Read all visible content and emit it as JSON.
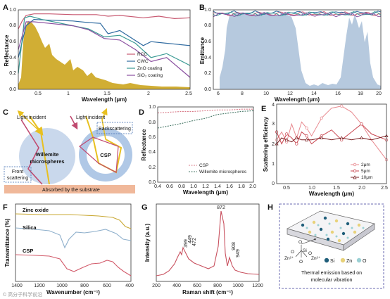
{
  "panels": {
    "a": {
      "label": "A",
      "ylabel": "Reflectance",
      "xlabel": "Wavelength (μm)",
      "yticks": [
        "0.0",
        "0.2",
        "0.4",
        "0.6",
        "0.8",
        "1.0"
      ],
      "xticks": [
        "0.5",
        "1",
        "1.5",
        "2",
        "2.5"
      ],
      "legend": [
        "RCC",
        "CWC",
        "ZnO coating",
        "SiO₂ coating"
      ]
    },
    "b": {
      "label": "B",
      "ylabel": "Emittance",
      "xlabel": "Wavelength (μm)",
      "yticks": [
        "0.0",
        "0.2",
        "0.4",
        "0.6",
        "0.8",
        "1.0"
      ],
      "xticks": [
        "6",
        "8",
        "10",
        "12",
        "14",
        "16",
        "18",
        "20"
      ]
    },
    "c": {
      "label": "C",
      "incident_left": "Light incident",
      "incident_right": "Light incident",
      "willemite": [
        "Willemite",
        "microspheres"
      ],
      "csp": "CSP",
      "backscattering": "Backscattering",
      "front": [
        "Front",
        "scattering"
      ],
      "absorbed": "Absorbed by the substrate"
    },
    "d": {
      "label": "D",
      "ylabel": "Reflectance",
      "xlabel": "Wavelength (μm)",
      "yticks": [
        "0.0",
        "0.2",
        "0.4",
        "0.6",
        "0.8",
        "1.0"
      ],
      "xticks": [
        "0.4",
        "0.6",
        "0.8",
        "1.0",
        "1.2",
        "1.4",
        "1.6",
        "1.8",
        "2.0"
      ],
      "legend": [
        "CSP",
        "Willemite microspheres"
      ]
    },
    "e": {
      "label": "E",
      "ylabel": "Scattering efficiency",
      "xlabel": "Wavelength (μm)",
      "yticks": [
        "0",
        "1",
        "2",
        "3",
        "4"
      ],
      "xticks": [
        "0.5",
        "1.0",
        "1.5",
        "2.0",
        "2.5"
      ],
      "legend": [
        "2μm",
        "5μm",
        "10μm"
      ]
    },
    "f": {
      "label": "F",
      "ylabel": "Transmittance (%)",
      "xlabel": "Wavenumber (cm⁻¹)",
      "xticks": [
        "1400",
        "1200",
        "1000",
        "800",
        "600",
        "400"
      ],
      "series_labels": [
        "Zinc oxide",
        "Silica",
        "CSP"
      ]
    },
    "g": {
      "label": "G",
      "ylabel": "Intensity (a.u.)",
      "xlabel": "Raman shift (cm⁻¹)",
      "xticks": [
        "200",
        "400",
        "600",
        "800",
        "1000",
        "1200"
      ],
      "peaks": [
        "399",
        "449",
        "472",
        "872",
        "908",
        "949"
      ]
    },
    "h": {
      "label": "H",
      "legend": [
        "Si",
        "Zn",
        "O"
      ],
      "ions": [
        "Zn²⁺",
        "O",
        "O",
        "Si",
        "O",
        "O",
        "Zn²⁺"
      ],
      "caption": [
        "Thermal emission based on",
        "molecular vibration"
      ]
    }
  },
  "watermark": "© 高分子科学前沿",
  "colors": {
    "rcc": "#c85a72",
    "cwc": "#2e6aa0",
    "zno": "#3a9a94",
    "sio2": "#8a4fa0",
    "solar": "#c9a010",
    "atm": "#a9c0d8",
    "csp": "#d97a88",
    "wil": "#4a7a6a",
    "e2": "#e8898f",
    "e5": "#c8454f",
    "e10": "#7a1f22",
    "zinc": "#c9a833",
    "silica": "#8fb0cc",
    "cspf": "#d25a6a",
    "raman": "#c8505e",
    "hframe": "#6a68b0"
  },
  "chart_data": [
    {
      "panel": "A",
      "type": "line",
      "xlim": [
        0.3,
        2.5
      ],
      "ylim": [
        0,
        1.0
      ],
      "series": [
        {
          "name": "RCC",
          "x": [
            0.3,
            0.35,
            0.4,
            0.5,
            0.7,
            1.0,
            1.3,
            1.45,
            1.6,
            1.9,
            2.1,
            2.3,
            2.5
          ],
          "y": [
            0.76,
            0.86,
            0.93,
            0.95,
            0.95,
            0.94,
            0.94,
            0.92,
            0.93,
            0.9,
            0.92,
            0.89,
            0.9
          ]
        },
        {
          "name": "CWC",
          "x": [
            0.3,
            0.4,
            0.5,
            0.7,
            1.0,
            1.2,
            1.35,
            1.45,
            1.6,
            1.9,
            2.0,
            2.2,
            2.5
          ],
          "y": [
            0.4,
            0.8,
            0.88,
            0.87,
            0.86,
            0.84,
            0.83,
            0.7,
            0.74,
            0.55,
            0.6,
            0.58,
            0.55
          ]
        },
        {
          "name": "ZnO coating",
          "x": [
            0.3,
            0.38,
            0.45,
            0.6,
            0.8,
            1.0,
            1.2,
            1.4,
            1.6,
            1.8,
            2.0,
            2.2,
            2.5
          ],
          "y": [
            0.2,
            0.9,
            0.92,
            0.88,
            0.84,
            0.8,
            0.76,
            0.66,
            0.68,
            0.58,
            0.4,
            0.45,
            0.3
          ]
        },
        {
          "name": "SiO₂ coating",
          "x": [
            0.3,
            0.4,
            0.5,
            0.7,
            1.0,
            1.2,
            1.4,
            1.6,
            1.8,
            2.0,
            2.2,
            2.5
          ],
          "y": [
            0.5,
            0.85,
            0.85,
            0.83,
            0.8,
            0.75,
            0.64,
            0.62,
            0.5,
            0.35,
            0.4,
            0.15
          ]
        }
      ]
    },
    {
      "panel": "B",
      "type": "line",
      "xlim": [
        6,
        20
      ],
      "ylim": [
        0,
        1.0
      ],
      "series": [
        {
          "name": "RCC",
          "y_mean": 0.95
        },
        {
          "name": "CWC",
          "y_mean": 0.96
        },
        {
          "name": "ZnO coating",
          "y_mean": 0.95
        },
        {
          "name": "SiO₂ coating",
          "y_mean": 0.94
        }
      ]
    },
    {
      "panel": "D",
      "type": "line",
      "xlim": [
        0.4,
        2.0
      ],
      "ylim": [
        0,
        1.0
      ],
      "series": [
        {
          "name": "CSP",
          "x": [
            0.4,
            0.6,
            0.8,
            1.0,
            1.2,
            1.4,
            1.6,
            1.8,
            2.0
          ],
          "y": [
            0.92,
            0.93,
            0.94,
            0.94,
            0.95,
            0.96,
            0.96,
            0.97,
            0.97
          ]
        },
        {
          "name": "Willemite microspheres",
          "x": [
            0.4,
            0.6,
            0.8,
            1.0,
            1.2,
            1.4,
            1.6,
            1.8,
            2.0
          ],
          "y": [
            0.72,
            0.75,
            0.78,
            0.82,
            0.85,
            0.9,
            0.92,
            0.94,
            0.95
          ]
        }
      ]
    },
    {
      "panel": "E",
      "type": "line",
      "xlim": [
        0.3,
        2.5
      ],
      "ylim": [
        0,
        4
      ],
      "series": [
        {
          "name": "2μm",
          "x": [
            0.3,
            0.4,
            0.5,
            0.6,
            0.7,
            0.8,
            0.9,
            1.0,
            1.2,
            1.4,
            1.6,
            1.8,
            2.0,
            2.2,
            2.5
          ],
          "y": [
            2.2,
            2.6,
            2.1,
            3.0,
            2.3,
            3.1,
            2.8,
            2.4,
            3.3,
            3.8,
            3.9,
            3.6,
            3.0,
            2.2,
            1.2
          ]
        },
        {
          "name": "5μm",
          "x": [
            0.3,
            0.4,
            0.5,
            0.6,
            0.7,
            0.8,
            0.9,
            1.0,
            1.2,
            1.4,
            1.6,
            1.8,
            2.0,
            2.2,
            2.5
          ],
          "y": [
            2.6,
            2.0,
            2.5,
            2.3,
            2.0,
            2.6,
            2.4,
            2.0,
            2.4,
            2.7,
            2.2,
            2.6,
            3.0,
            2.5,
            2.2
          ]
        },
        {
          "name": "10μm",
          "x": [
            0.3,
            0.4,
            0.5,
            0.6,
            0.7,
            0.8,
            0.9,
            1.0,
            1.2,
            1.4,
            1.6,
            1.8,
            2.0,
            2.2,
            2.5
          ],
          "y": [
            2.0,
            2.3,
            2.2,
            2.1,
            2.3,
            2.2,
            2.2,
            2.2,
            2.3,
            2.2,
            2.3,
            2.2,
            2.3,
            2.2,
            2.4
          ]
        }
      ]
    },
    {
      "panel": "G",
      "type": "line",
      "xlim": [
        200,
        1200
      ],
      "peaks": [
        399,
        449,
        472,
        872,
        908,
        949
      ]
    }
  ]
}
